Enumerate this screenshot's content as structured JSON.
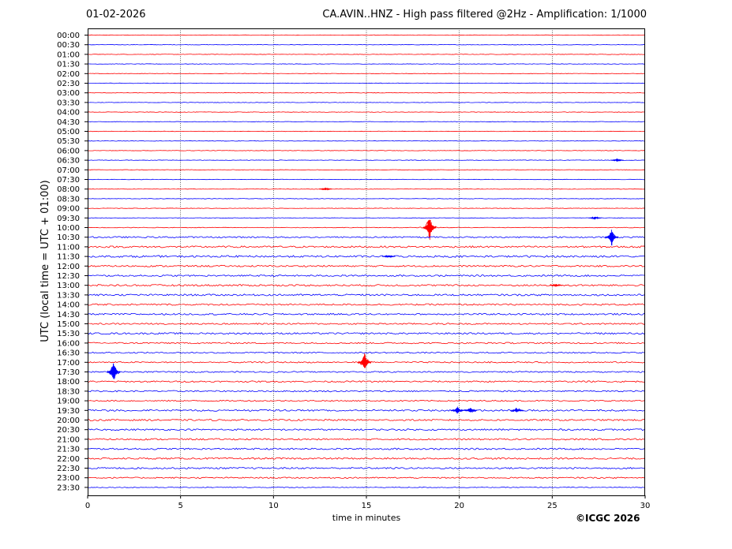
{
  "header": {
    "date": "01-02-2026",
    "title": "CA.AVIN..HNZ - High pass filtered @2Hz - Amplification: 1/1000"
  },
  "footer": {
    "copyright": "©ICGC 2026"
  },
  "chart_data": {
    "type": "line",
    "title": "CA.AVIN..HNZ - High pass filtered @2Hz - Amplification: 1/1000",
    "xlabel": "time in minutes",
    "ylabel": "UTC (local time = UTC + 01:00)",
    "xlim": [
      0,
      30
    ],
    "x_ticks": [
      0,
      5,
      10,
      15,
      20,
      25,
      30
    ],
    "grid": "vertical dotted lines at each x tick",
    "trace_colors": [
      "#ff0000",
      "#0000ff"
    ],
    "row_labels": [
      "00:00",
      "00:30",
      "01:00",
      "01:30",
      "02:00",
      "02:30",
      "03:00",
      "03:30",
      "04:00",
      "04:30",
      "05:00",
      "05:30",
      "06:00",
      "06:30",
      "07:00",
      "07:30",
      "08:00",
      "08:30",
      "09:00",
      "09:30",
      "10:00",
      "10:30",
      "11:00",
      "11:30",
      "12:00",
      "12:30",
      "13:00",
      "13:30",
      "14:00",
      "14:30",
      "15:00",
      "15:30",
      "16:00",
      "16:30",
      "17:00",
      "17:30",
      "18:00",
      "18:30",
      "19:00",
      "19:30",
      "20:00",
      "20:30",
      "21:00",
      "21:30",
      "22:00",
      "22:30",
      "23:00",
      "23:30"
    ],
    "noise_level": [
      0.3,
      0.3,
      0.3,
      0.3,
      0.3,
      0.3,
      0.3,
      0.3,
      0.3,
      0.3,
      0.3,
      0.3,
      0.3,
      0.3,
      0.3,
      0.3,
      0.3,
      0.3,
      0.3,
      0.3,
      0.4,
      0.9,
      1.1,
      1.2,
      1.0,
      1.0,
      1.1,
      1.1,
      1.0,
      1.0,
      0.9,
      1.0,
      0.9,
      0.8,
      0.8,
      0.8,
      0.9,
      0.9,
      0.8,
      1.0,
      1.0,
      1.0,
      1.0,
      1.0,
      1.0,
      1.0,
      0.8,
      0.5
    ],
    "events": [
      {
        "row": "10:00",
        "minute": 18.4,
        "amplitude": 18
      },
      {
        "row": "10:30",
        "minute": 28.2,
        "amplitude": 12
      },
      {
        "row": "17:00",
        "minute": 14.9,
        "amplitude": 13
      },
      {
        "row": "17:30",
        "minute": 1.4,
        "amplitude": 15
      },
      {
        "row": "19:30",
        "minute": 19.9,
        "amplitude": 5
      },
      {
        "row": "19:30",
        "minute": 20.6,
        "amplitude": 4
      },
      {
        "row": "19:30",
        "minute": 23.1,
        "amplitude": 3
      },
      {
        "row": "08:00",
        "minute": 12.8,
        "amplitude": 2
      },
      {
        "row": "06:30",
        "minute": 28.5,
        "amplitude": 2
      },
      {
        "row": "09:30",
        "minute": 27.3,
        "amplitude": 2
      },
      {
        "row": "11:30",
        "minute": 16.2,
        "amplitude": 2
      },
      {
        "row": "13:00",
        "minute": 25.2,
        "amplitude": 2
      }
    ]
  }
}
